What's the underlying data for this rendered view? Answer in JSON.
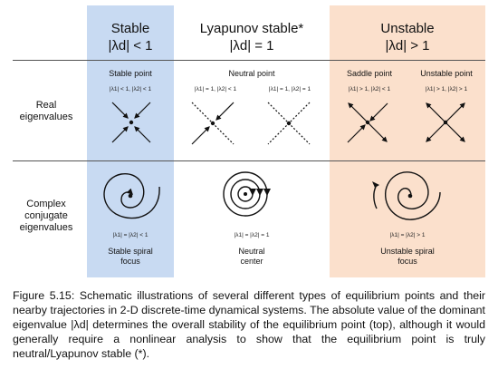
{
  "headers": {
    "stable": {
      "title": "Stable",
      "condition": "|λd| < 1"
    },
    "lyapunov": {
      "title": "Lyapunov stable*",
      "condition": "|λd| = 1"
    },
    "unstable": {
      "title": "Unstable",
      "condition": "|λd| > 1"
    }
  },
  "rows": {
    "real": "Real\neigenvalues",
    "complex": "Complex\nconjugate\neigenvalues"
  },
  "real_cells": {
    "stable_point": {
      "label": "Stable point",
      "condition": "|λ1| < 1, |λ2| < 1"
    },
    "neutral_point": {
      "label": "Neutral point",
      "condition_a": "|λ1| = 1, |λ2| < 1",
      "condition_b": "|λ1| = 1, |λ2| = 1"
    },
    "saddle_point": {
      "label": "Saddle point",
      "condition": "|λ1| > 1, |λ2| < 1"
    },
    "unstable_point": {
      "label": "Unstable point",
      "condition": "|λ1| > 1, |λ2| > 1"
    }
  },
  "complex_cells": {
    "stable": {
      "condition": "|λ1| = |λ2| < 1",
      "label": "Stable spiral\nfocus"
    },
    "neutral": {
      "condition": "|λ1| = |λ2| = 1",
      "label": "Neutral\ncenter"
    },
    "unstable": {
      "condition": "|λ1| = |λ2| > 1",
      "label": "Unstable spiral\nfocus"
    }
  },
  "caption": "Figure 5.15: Schematic illustrations of several different types of equilibrium points and their nearby trajectories in 2-D discrete-time dynamical systems. The absolute value of the dominant eigenvalue |λd| determines the overall stability of the equilibrium point (top), although it would generally require a nonlinear analysis to show that the equilibrium point is truly neutral/Lyapunov stable (*).",
  "colors": {
    "stable_bg": "#c8daf2",
    "unstable_bg": "#fbe0cc",
    "ink": "#111111"
  }
}
